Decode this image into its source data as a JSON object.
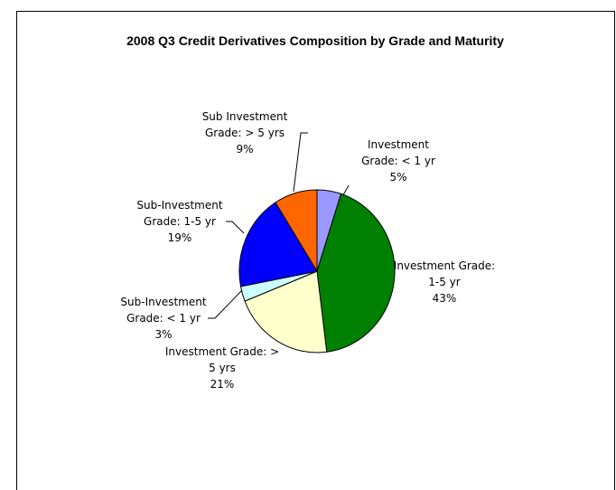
{
  "chart_data": {
    "type": "pie",
    "title": "2008 Q3 Credit Derivatives Composition by Grade and Maturity",
    "categories": [
      "Investment Grade: < 1 yr",
      "Investment Grade: 1-5 yr",
      "Investment Grade: > 5 yrs",
      "Sub-Investment Grade: < 1 yr",
      "Sub-Investment Grade: 1-5 yr",
      "Sub Investment Grade: > 5 yrs"
    ],
    "values": [
      5,
      43,
      21,
      3,
      19,
      9
    ],
    "value_labels": [
      "5%",
      "43%",
      "21%",
      "3%",
      "19%",
      "9%"
    ],
    "colors": [
      "#9999ff",
      "#008000",
      "#ffffcc",
      "#ccffff",
      "#0000ff",
      "#ff6600"
    ]
  }
}
